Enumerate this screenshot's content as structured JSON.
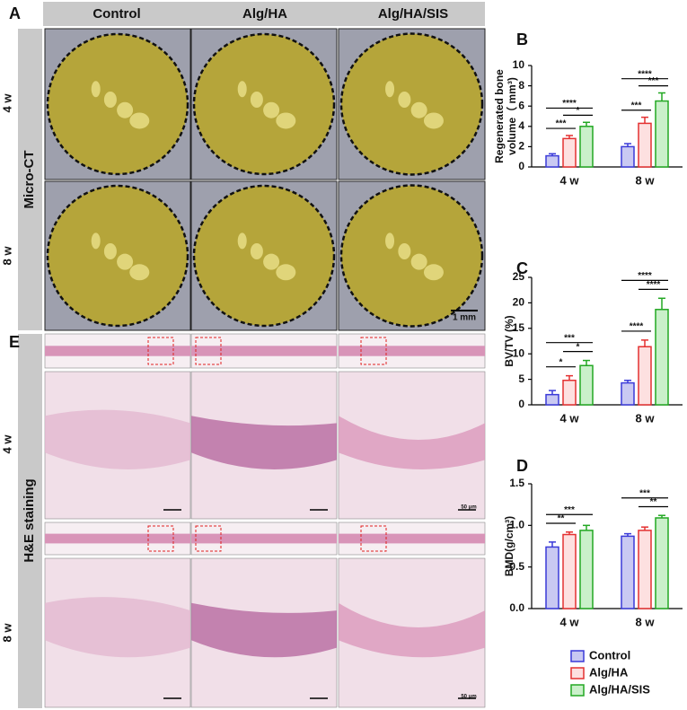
{
  "micro_ct": {
    "label": "A",
    "columns": [
      "Control",
      "Alg/HA",
      "Alg/HA/SIS"
    ],
    "rows": [
      "4 w",
      "8 w"
    ],
    "method": "Micro-CT",
    "scale_bar": "1 mm"
  },
  "he_staining": {
    "label": "E",
    "rows": [
      "4 w",
      "8 w"
    ],
    "method": "H&E staining",
    "scale_bars": [
      "50 μm",
      "50 μm"
    ]
  },
  "chart_data": [
    {
      "type": "bar",
      "panel": "B",
      "ylabel": [
        "Regenerated bone",
        "volume（ mm³)"
      ],
      "categories": [
        "4 w",
        "8 w"
      ],
      "ylim": [
        0,
        10
      ],
      "yticks": [
        0,
        2,
        4,
        6,
        8,
        10
      ],
      "series": [
        {
          "name": "Control",
          "color": "#3a3ad8",
          "fill": "#c9c9f2",
          "values": [
            1.1,
            2.0
          ],
          "errors": [
            0.2,
            0.3
          ]
        },
        {
          "name": "Alg/HA",
          "color": "#e43131",
          "fill": "#fde0e0",
          "values": [
            2.8,
            4.3
          ],
          "errors": [
            0.3,
            0.6
          ]
        },
        {
          "name": "Alg/HA/SIS",
          "color": "#23a823",
          "fill": "#caf0ca",
          "values": [
            4.0,
            6.5
          ],
          "errors": [
            0.4,
            0.8
          ]
        }
      ],
      "annotations": [
        {
          "category": "4 w",
          "between": [
            "Control",
            "Alg/HA"
          ],
          "label": "***"
        },
        {
          "category": "4 w",
          "between": [
            "Alg/HA",
            "Alg/HA/SIS"
          ],
          "label": "*"
        },
        {
          "category": "4 w",
          "between": [
            "Control",
            "Alg/HA/SIS"
          ],
          "label": "****"
        },
        {
          "category": "8 w",
          "between": [
            "Control",
            "Alg/HA"
          ],
          "label": "***"
        },
        {
          "category": "8 w",
          "between": [
            "Alg/HA",
            "Alg/HA/SIS"
          ],
          "label": "***"
        },
        {
          "category": "8 w",
          "between": [
            "Control",
            "Alg/HA/SIS"
          ],
          "label": "****"
        }
      ]
    },
    {
      "type": "bar",
      "panel": "C",
      "ylabel": [
        "BV/TV (%)"
      ],
      "categories": [
        "4 w",
        "8 w"
      ],
      "ylim": [
        0,
        25
      ],
      "yticks": [
        0,
        5,
        10,
        15,
        20,
        25
      ],
      "series": [
        {
          "name": "Control",
          "color": "#3a3ad8",
          "fill": "#c9c9f2",
          "values": [
            2.0,
            4.3
          ],
          "errors": [
            0.8,
            0.5
          ]
        },
        {
          "name": "Alg/HA",
          "color": "#e43131",
          "fill": "#fde0e0",
          "values": [
            4.8,
            11.4
          ],
          "errors": [
            0.9,
            1.3
          ]
        },
        {
          "name": "Alg/HA/SIS",
          "color": "#23a823",
          "fill": "#caf0ca",
          "values": [
            7.7,
            18.7
          ],
          "errors": [
            1.0,
            2.2
          ]
        }
      ],
      "annotations": [
        {
          "category": "4 w",
          "between": [
            "Control",
            "Alg/HA"
          ],
          "label": "*"
        },
        {
          "category": "4 w",
          "between": [
            "Alg/HA",
            "Alg/HA/SIS"
          ],
          "label": "*"
        },
        {
          "category": "4 w",
          "between": [
            "Control",
            "Alg/HA/SIS"
          ],
          "label": "***"
        },
        {
          "category": "8 w",
          "between": [
            "Control",
            "Alg/HA"
          ],
          "label": "****"
        },
        {
          "category": "8 w",
          "between": [
            "Alg/HA",
            "Alg/HA/SIS"
          ],
          "label": "****"
        },
        {
          "category": "8 w",
          "between": [
            "Control",
            "Alg/HA/SIS"
          ],
          "label": "****"
        }
      ]
    },
    {
      "type": "bar",
      "panel": "D",
      "ylabel": [
        "BMD(g/cm³)"
      ],
      "categories": [
        "4 w",
        "8 w"
      ],
      "ylim": [
        0,
        1.5
      ],
      "yticks": [
        {
          "value": 0,
          "label": "0.0"
        },
        0.5,
        {
          "value": 1,
          "label": "1.0"
        },
        1.5
      ],
      "series": [
        {
          "name": "Control",
          "color": "#3a3ad8",
          "fill": "#c9c9f2",
          "values": [
            0.74,
            0.87
          ],
          "errors": [
            0.06,
            0.03
          ]
        },
        {
          "name": "Alg/HA",
          "color": "#e43131",
          "fill": "#fde0e0",
          "values": [
            0.89,
            0.94
          ],
          "errors": [
            0.03,
            0.04
          ]
        },
        {
          "name": "Alg/HA/SIS",
          "color": "#23a823",
          "fill": "#caf0ca",
          "values": [
            0.94,
            1.09
          ],
          "errors": [
            0.06,
            0.03
          ]
        }
      ],
      "annotations": [
        {
          "category": "4 w",
          "between": [
            "Control",
            "Alg/HA"
          ],
          "label": "**"
        },
        {
          "category": "4 w",
          "between": [
            "Control",
            "Alg/HA/SIS"
          ],
          "label": "***"
        },
        {
          "category": "8 w",
          "between": [
            "Alg/HA",
            "Alg/HA/SIS"
          ],
          "label": "**"
        },
        {
          "category": "8 w",
          "between": [
            "Control",
            "Alg/HA/SIS"
          ],
          "label": "***"
        }
      ]
    }
  ]
}
